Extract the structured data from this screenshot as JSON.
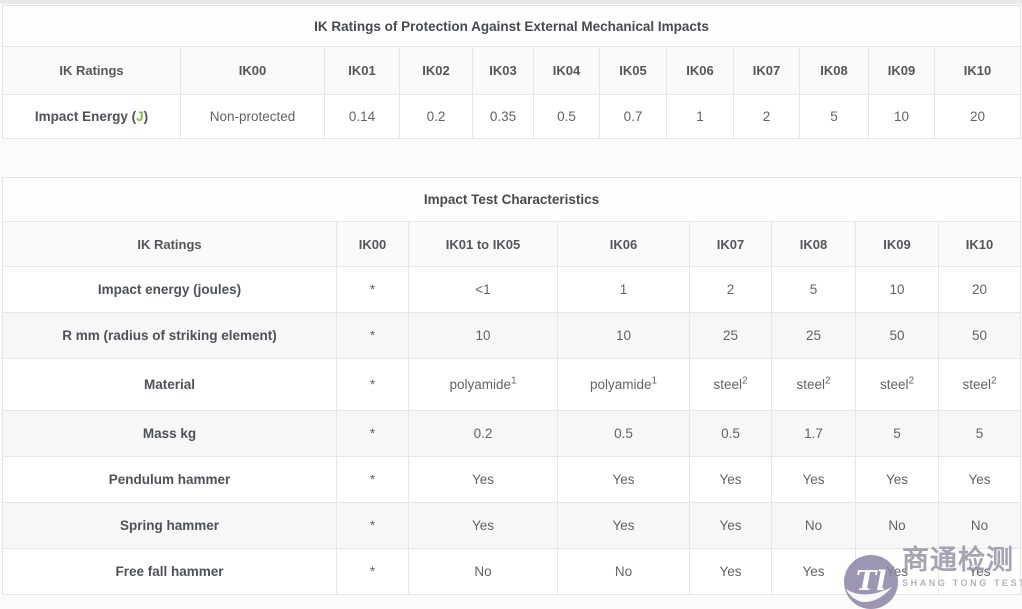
{
  "table1": {
    "title": "IK Ratings of Protection Against External Mechanical Impacts",
    "header": [
      "IK Ratings",
      "IK00",
      "IK01",
      "IK02",
      "IK03",
      "IK04",
      "IK05",
      "IK06",
      "IK07",
      "IK08",
      "IK09",
      "IK10"
    ],
    "row_label": {
      "pre": "Impact Energy (",
      "unit": "J",
      "post": ")"
    },
    "values": [
      "Non-protected",
      "0.14",
      "0.2",
      "0.35",
      "0.5",
      "0.7",
      "1",
      "2",
      "5",
      "10",
      "20"
    ]
  },
  "table2": {
    "title": "Impact Test Characteristics",
    "header": [
      "IK Ratings",
      "IK00",
      "IK01 to IK05",
      "IK06",
      "IK07",
      "IK08",
      "IK09",
      "IK10"
    ],
    "rows": [
      {
        "label": "Impact energy (joules)",
        "values": [
          "*",
          "<1",
          "1",
          "2",
          "5",
          "10",
          "20"
        ]
      },
      {
        "label": "R mm (radius of striking element)",
        "values": [
          "*",
          "10",
          "10",
          "25",
          "25",
          "50",
          "50"
        ]
      },
      {
        "label": "Material",
        "values": [
          "*",
          "polyamide^1",
          "polyamide^1",
          "steel^2",
          "steel^2",
          "steel^2",
          "steel^2"
        ]
      },
      {
        "label": "Mass kg",
        "values": [
          "*",
          "0.2",
          "0.5",
          "0.5",
          "1.7",
          "5",
          "5"
        ]
      },
      {
        "label": "Pendulum hammer",
        "values": [
          "*",
          "Yes",
          "Yes",
          "Yes",
          "Yes",
          "Yes",
          "Yes"
        ]
      },
      {
        "label": "Spring hammer",
        "values": [
          "*",
          "Yes",
          "Yes",
          "Yes",
          "No",
          "No",
          "No"
        ]
      },
      {
        "label": "Free fall hammer",
        "values": [
          "*",
          "No",
          "No",
          "Yes",
          "Yes",
          "Yes",
          "Yes"
        ]
      }
    ]
  },
  "watermark": {
    "monogram": "Tl",
    "cn_text": "商通检测",
    "en_text": "SHANG TONG TESTING",
    "circle_color": "#8d84a6",
    "cn_color": "#9a93a7",
    "en_color": "#a8a3b2"
  },
  "colors": {
    "accent_green": "#8cb842",
    "border": "#e6e6e6",
    "header_text": "#54565a",
    "data_text": "#636367"
  }
}
